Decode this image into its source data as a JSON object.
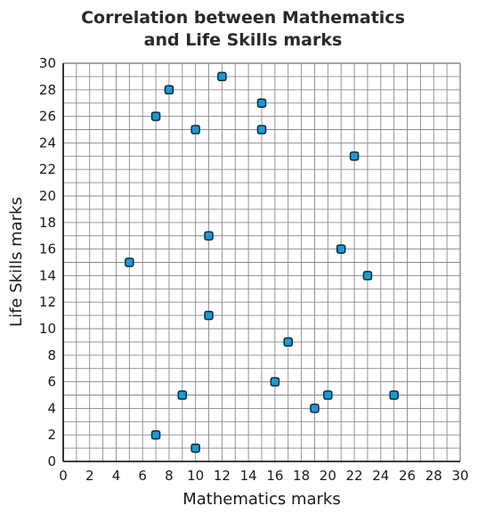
{
  "chart_data": {
    "type": "scatter",
    "title_lines": [
      "Correlation between Mathematics",
      "and Life Skills marks"
    ],
    "xlabel": "Mathematics marks",
    "ylabel": "Life Skills marks",
    "xlim": [
      0,
      30
    ],
    "ylim": [
      0,
      30
    ],
    "x_ticks": [
      0,
      2,
      4,
      6,
      8,
      10,
      12,
      14,
      16,
      18,
      20,
      22,
      24,
      26,
      28,
      30
    ],
    "y_ticks": [
      0,
      2,
      4,
      6,
      8,
      10,
      12,
      14,
      16,
      18,
      20,
      22,
      24,
      26,
      28,
      30
    ],
    "grid": true,
    "point_color": "#1a9ad6",
    "points": [
      {
        "x": 12,
        "y": 29
      },
      {
        "x": 8,
        "y": 28
      },
      {
        "x": 15,
        "y": 27
      },
      {
        "x": 7,
        "y": 26
      },
      {
        "x": 10,
        "y": 25
      },
      {
        "x": 15,
        "y": 25
      },
      {
        "x": 22,
        "y": 23
      },
      {
        "x": 11,
        "y": 17
      },
      {
        "x": 21,
        "y": 16
      },
      {
        "x": 5,
        "y": 15
      },
      {
        "x": 23,
        "y": 14
      },
      {
        "x": 11,
        "y": 11
      },
      {
        "x": 17,
        "y": 9
      },
      {
        "x": 16,
        "y": 6
      },
      {
        "x": 9,
        "y": 5
      },
      {
        "x": 20,
        "y": 5
      },
      {
        "x": 25,
        "y": 5
      },
      {
        "x": 19,
        "y": 4
      },
      {
        "x": 7,
        "y": 2
      },
      {
        "x": 10,
        "y": 1
      }
    ]
  }
}
